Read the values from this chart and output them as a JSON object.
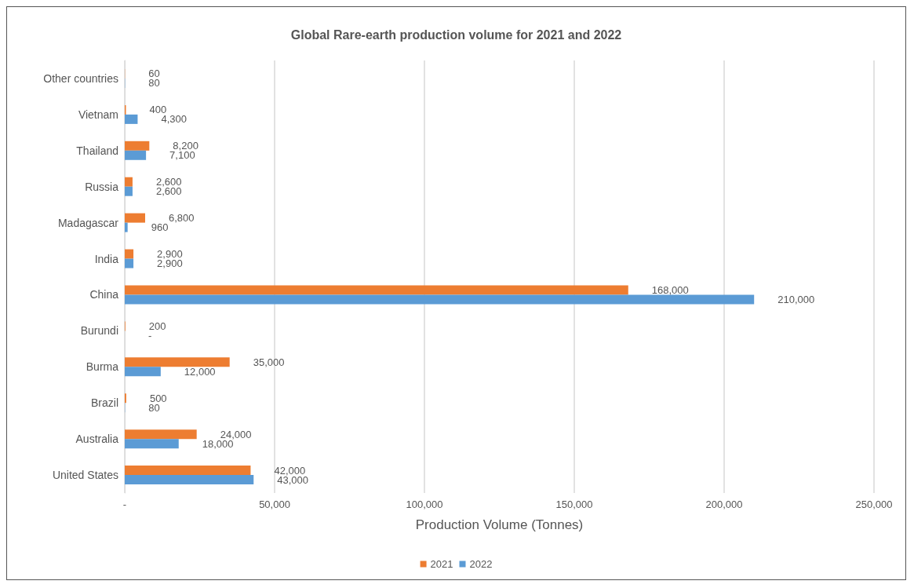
{
  "chart_data": {
    "type": "bar",
    "orientation": "horizontal",
    "title": "Global Rare-earth production volume for 2021 and 2022",
    "xlabel": "Production Volume (Tonnes)",
    "categories": [
      "Other countries",
      "Vietnam",
      "Thailand",
      "Russia",
      "Madagascar",
      "India",
      "China",
      "Burundi",
      "Burma",
      "Brazil",
      "Australia",
      "United States"
    ],
    "series": [
      {
        "name": "2021",
        "color": "#ed7d31",
        "values": [
          60,
          400,
          8200,
          2600,
          6800,
          2900,
          168000,
          200,
          35000,
          500,
          24000,
          42000
        ],
        "value_labels": [
          "60",
          "400",
          "8,200",
          "2,600",
          "6,800",
          "2,900",
          "168,000",
          "200",
          "35,000",
          "500",
          "24,000",
          "42,000"
        ]
      },
      {
        "name": "2022",
        "color": "#5b9bd5",
        "values": [
          80,
          4300,
          7100,
          2600,
          960,
          2900,
          210000,
          0,
          12000,
          80,
          18000,
          43000
        ],
        "value_labels": [
          "80",
          "4,300",
          "7,100",
          "2,600",
          "960",
          "2,900",
          "210,000",
          "-",
          "12,000",
          "80",
          "18,000",
          "43,000"
        ]
      }
    ],
    "xlim": [
      0,
      250000
    ],
    "xticks": [
      {
        "value": 0,
        "label": "-"
      },
      {
        "value": 50000,
        "label": "50,000"
      },
      {
        "value": 100000,
        "label": "100,000"
      },
      {
        "value": 150000,
        "label": "150,000"
      },
      {
        "value": 200000,
        "label": "200,000"
      },
      {
        "value": 250000,
        "label": "250,000"
      }
    ],
    "grid": "x",
    "legend": "bottom"
  }
}
